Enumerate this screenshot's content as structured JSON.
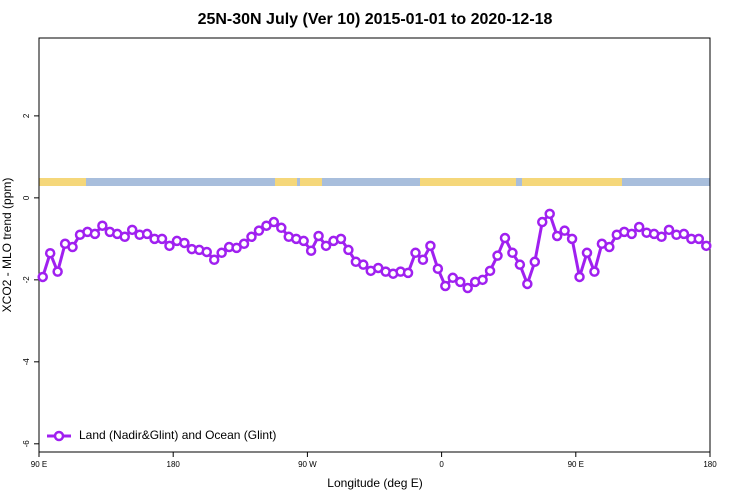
{
  "chart_data": {
    "type": "line",
    "title": "25N-30N July (Ver 10)   2015-01-01 to 2020-12-18",
    "xlabel": "Longitude (deg E)",
    "ylabel": "XCO2 - MLO trend (ppm)",
    "x": [
      92.5,
      97.5,
      102.5,
      107.5,
      112.5,
      117.5,
      122.5,
      127.5,
      132.5,
      137.5,
      142.5,
      147.5,
      152.5,
      157.5,
      162.5,
      167.5,
      172.5,
      177.5,
      182.5,
      187.5,
      192.5,
      197.5,
      202.5,
      207.5,
      212.5,
      217.5,
      222.5,
      227.5,
      232.5,
      237.5,
      242.5,
      247.5,
      252.5,
      257.5,
      262.5,
      267.5,
      272.5,
      277.5,
      282.5,
      287.5,
      292.5,
      297.5,
      302.5,
      307.5,
      312.5,
      317.5,
      322.5,
      327.5,
      332.5,
      337.5,
      342.5,
      347.5,
      352.5,
      357.5,
      362.5,
      367.5,
      372.5,
      377.5,
      382.5,
      387.5,
      392.5,
      397.5,
      402.5,
      407.5,
      412.5,
      417.5,
      422.5,
      427.5,
      432.5,
      437.5,
      442.5,
      447.5,
      452.5,
      457.5,
      462.5,
      467.5,
      472.5,
      477.5,
      482.5,
      487.5,
      492.5,
      497.5,
      502.5,
      507.5,
      512.5,
      517.5,
      522.5,
      527.5,
      532.5,
      537.5
    ],
    "series": [
      {
        "name": "Land (Nadir&Glint) and Ocean (Glint)",
        "color": "#a020f0",
        "values": [
          -1.93,
          -1.35,
          -1.8,
          -1.12,
          -1.2,
          -0.9,
          -0.83,
          -0.88,
          -0.68,
          -0.83,
          -0.88,
          -0.95,
          -0.78,
          -0.9,
          -0.88,
          -1.0,
          -1.0,
          -1.17,
          -1.05,
          -1.1,
          -1.25,
          -1.27,
          -1.32,
          -1.51,
          -1.34,
          -1.2,
          -1.22,
          -1.12,
          -0.95,
          -0.8,
          -0.68,
          -0.59,
          -0.73,
          -0.95,
          -1.0,
          -1.05,
          -1.29,
          -0.93,
          -1.17,
          -1.05,
          -1.0,
          -1.27,
          -1.56,
          -1.63,
          -1.78,
          -1.71,
          -1.8,
          -1.85,
          -1.8,
          -1.83,
          -1.34,
          -1.51,
          -1.17,
          -1.73,
          -2.15,
          -1.95,
          -2.05,
          -2.2,
          -2.05,
          -2.0,
          -1.78,
          -1.41,
          -0.98,
          -1.34,
          -1.63,
          -2.1,
          -1.56,
          -0.59,
          -0.39,
          -0.93,
          -0.8,
          -1.0,
          -1.93,
          -1.34,
          -1.8,
          -1.12,
          -1.2,
          -0.9,
          -0.83,
          -0.88,
          -0.71,
          -0.85,
          -0.88,
          -0.95,
          -0.78,
          -0.9,
          -0.88,
          -1.0,
          -1.0,
          -1.17
        ]
      }
    ],
    "xlim": [
      90,
      540
    ],
    "xticks": [
      {
        "value": 90,
        "label": "90 E"
      },
      180,
      {
        "value": 270,
        "label": "90 W"
      },
      {
        "value": 360,
        "label": "0"
      },
      {
        "value": 450,
        "label": "90 E"
      },
      {
        "value": 540,
        "label": "180"
      }
    ],
    "ylim": [
      -6.2,
      3.9
    ],
    "yticks": [
      -6,
      -4,
      -2,
      0,
      2
    ],
    "legend": "bottom-left"
  }
}
